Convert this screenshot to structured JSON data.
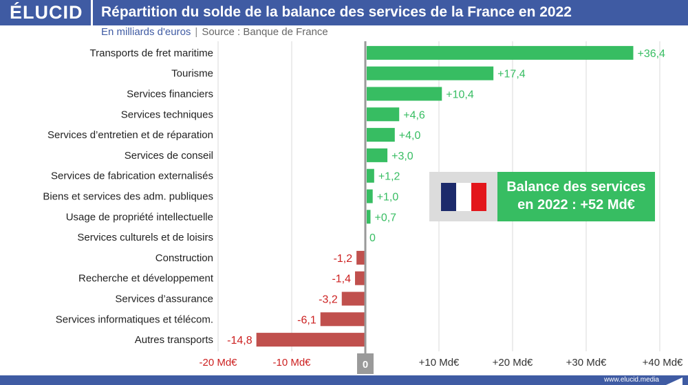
{
  "header": {
    "logo": "ÉLUCID",
    "title": "Répartition du solde de la balance des services de la France en 2022"
  },
  "subtitle": {
    "unit": "En milliards d'euros",
    "separator": "|",
    "source": "Source : Banque de France"
  },
  "callout": {
    "line1": "Balance des services",
    "line2": "en 2022 : +52 Md€"
  },
  "colors": {
    "header": "#3f5ba3",
    "positive": "#37bd62",
    "negative": "#c0504d",
    "negative_text": "#cc1f1f",
    "flag_blue": "#1c2a6b",
    "flag_white": "#ffffff",
    "flag_red": "#e3161b"
  },
  "footer": {
    "site": "www.elucid.media"
  },
  "chart_data": {
    "type": "bar",
    "orientation": "horizontal",
    "categories": [
      "Transports de fret maritime",
      "Tourisme",
      "Services financiers",
      "Services techniques",
      "Services d’entretien et de réparation",
      "Services de conseil",
      "Services de fabrication externalisés",
      "Biens et services des adm. publiques",
      "Usage de propriété intellectuelle",
      "Services culturels et de loisirs",
      "Construction",
      "Recherche et développement",
      "Services d’assurance",
      "Services informatiques et télécom.",
      "Autres transports"
    ],
    "values": [
      36.4,
      17.4,
      10.4,
      4.6,
      4.0,
      3.0,
      1.2,
      1.0,
      0.7,
      0,
      -1.2,
      -1.4,
      -3.2,
      -6.1,
      -14.8
    ],
    "value_labels": [
      "+36,4",
      "+17,4",
      "+10,4",
      "+4,6",
      "+4,0",
      "+3,0",
      "+1,2",
      "+1,0",
      "+0,7",
      "0",
      "-1,2",
      "-1,4",
      "-3,2",
      "-6,1",
      "-14,8"
    ],
    "xlim": [
      -20,
      40
    ],
    "xticks": [
      -20,
      -10,
      0,
      10,
      20,
      30,
      40
    ],
    "xtick_labels": [
      "-20 Md€",
      "-10 Md€",
      "0",
      "+10 Md€",
      "+20 Md€",
      "+30 Md€",
      "+40 Md€"
    ],
    "grid": true
  }
}
